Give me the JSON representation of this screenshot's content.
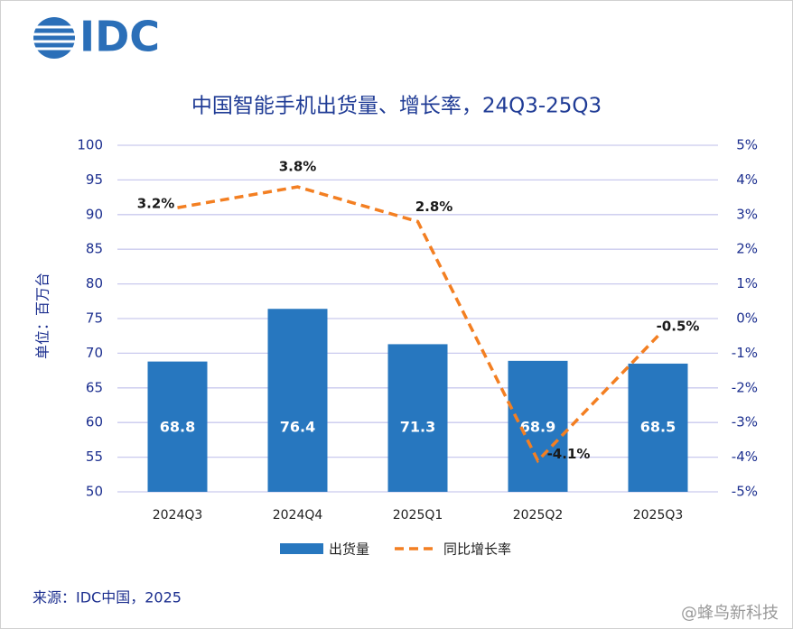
{
  "logo": "IDC",
  "source": "来源：IDC中国，2025",
  "watermark": "@蜂鸟新科技",
  "chart_data": {
    "type": "combo",
    "title": "中国智能手机出货量、增长率，24Q3-25Q3",
    "y_label": "单位：百万台",
    "categories": [
      "2024Q3",
      "2024Q4",
      "2025Q1",
      "2025Q2",
      "2025Q3"
    ],
    "series": [
      {
        "name": "出货量",
        "type": "bar",
        "color": "#2777bf",
        "values": [
          68.8,
          76.4,
          71.3,
          68.9,
          68.5
        ]
      },
      {
        "name": "同比增长率",
        "type": "line",
        "axis": "y2",
        "color": "#f37f22",
        "dashed": true,
        "values": [
          3.2,
          3.8,
          2.8,
          -4.1,
          -0.5
        ],
        "value_labels": [
          "3.2%",
          "3.8%",
          "2.8%",
          "-4.1%",
          "-0.5%"
        ]
      }
    ],
    "ylim": [
      50,
      100
    ],
    "yticks": [
      50,
      55,
      60,
      65,
      70,
      75,
      80,
      85,
      90,
      95,
      100
    ],
    "y2lim": [
      -5,
      5
    ],
    "y2ticks": [
      {
        "value": -5,
        "label": "-5%"
      },
      {
        "value": -4,
        "label": "-4%"
      },
      {
        "value": -3,
        "label": "-3%"
      },
      {
        "value": -2,
        "label": "-2%"
      },
      {
        "value": -1,
        "label": "-1%"
      },
      {
        "value": 0,
        "label": "0%"
      },
      {
        "value": 1,
        "label": "1%"
      },
      {
        "value": 2,
        "label": "2%"
      },
      {
        "value": 3,
        "label": "3%"
      },
      {
        "value": 4,
        "label": "4%"
      },
      {
        "value": 5,
        "label": "5%"
      }
    ],
    "grid": true,
    "legend": "bottom"
  }
}
